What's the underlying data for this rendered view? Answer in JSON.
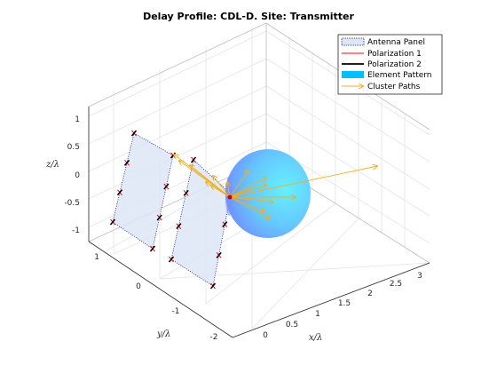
{
  "figure": {
    "title": "Delay Profile: CDL-D. Site: Transmitter"
  },
  "chart_data": {
    "type": "3d-scene",
    "title": "Delay Profile: CDL-D. Site: Transmitter",
    "xlabel": "x/λ",
    "ylabel": "y/λ",
    "zlabel": "z/λ",
    "x_ticks": [
      "0",
      "0.5",
      "1",
      "1.5",
      "2",
      "2.5",
      "3"
    ],
    "y_ticks": [
      "1",
      "0",
      "-1",
      "-2"
    ],
    "z_ticks": [
      "1",
      "0.5",
      "0",
      "-0.5",
      "-1"
    ],
    "xlim": [
      -0.3,
      3.3
    ],
    "ylim": [
      -2.3,
      1.6
    ],
    "zlim": [
      -1.2,
      1.5
    ],
    "grid": true,
    "legend_placement": "top-right",
    "legend": [
      {
        "label": "Antenna Panel",
        "style": "panel"
      },
      {
        "label": "Polarization 1",
        "style": "line",
        "color": "#ff0000"
      },
      {
        "label": "Polarization 2",
        "style": "line",
        "color": "#000000"
      },
      {
        "label": "Element Pattern",
        "style": "patch",
        "color": "#00bfff"
      },
      {
        "label": "Cluster Paths",
        "style": "arrow",
        "color": "#edb120"
      }
    ],
    "colors": {
      "panel_fill": "#dde6f7",
      "polarization_1": "#ff0000",
      "polarization_2": "#000000",
      "pattern_low": "#6f8cff",
      "pattern_high": "#66f0ff",
      "cluster_path": "#edb120"
    }
  }
}
